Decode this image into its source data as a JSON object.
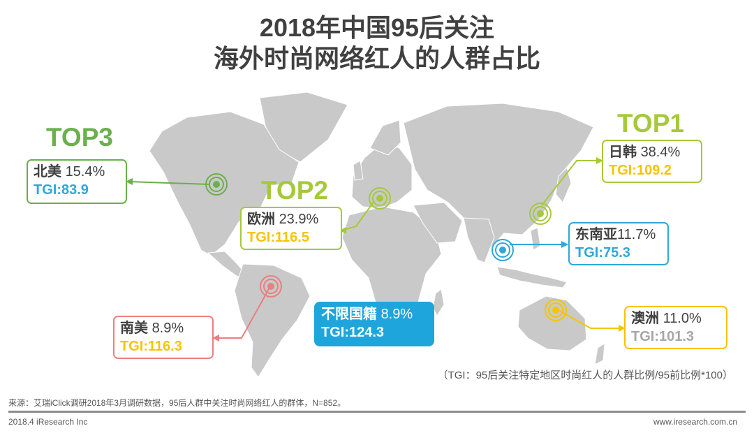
{
  "title": {
    "line1": "2018年中国95后关注",
    "line2": "海外时尚网络红人的人群占比"
  },
  "colors": {
    "green": "#6ab04c",
    "lime": "#a5c93a",
    "blue": "#2fa8d8",
    "yellow": "#f5c400",
    "pink": "#ea7f7f",
    "grey": "#a6a6a6"
  },
  "top_labels": {
    "top1": "TOP1",
    "top2": "TOP2",
    "top3": "TOP3"
  },
  "regions": {
    "north_america": {
      "name": "北美",
      "share": "15.4%",
      "tgi": "TGI:83.9"
    },
    "europe": {
      "name": "欧洲",
      "share": "23.9%",
      "tgi": "TGI:116.5"
    },
    "japan_korea": {
      "name": "日韩",
      "share": "38.4%",
      "tgi": "TGI:109.2"
    },
    "southeast_asia": {
      "name": "东南亚",
      "share": "11.7%",
      "tgi": "TGI:75.3"
    },
    "australia": {
      "name": "澳洲",
      "share": "11.0%",
      "tgi": "TGI:101.3"
    },
    "south_america": {
      "name": "南美",
      "share": "8.9%",
      "tgi": "TGI:116.3"
    },
    "unlimited": {
      "name": "不限国籍",
      "share": "8.9%",
      "tgi": "TGI:124.3"
    }
  },
  "note": "（TGI：95后关注特定地区时尚红人的人群比例/95前比例*100）",
  "source": "来源：艾瑞iClick调研2018年3月调研数据，95后人群中关注时尚网络红人的群体，N=852。",
  "footer": {
    "left": "2018.4 iResearch Inc",
    "right": "www.iresearch.com.cn"
  }
}
